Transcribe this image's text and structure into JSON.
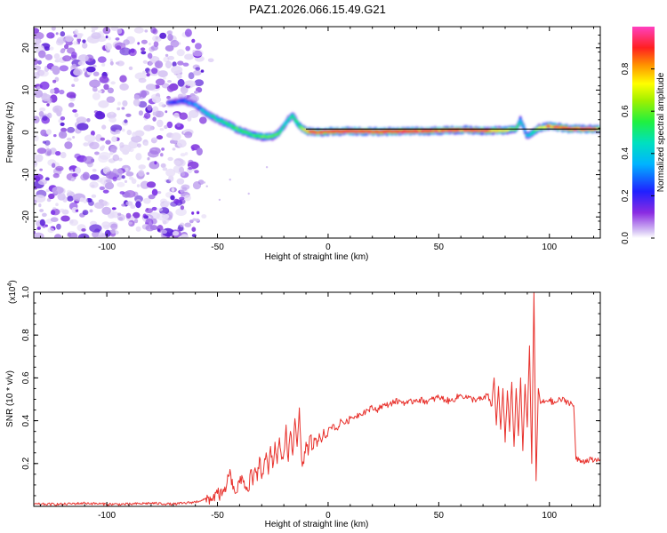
{
  "chart_data": [
    {
      "type": "heatmap",
      "title": "PAZ1.2026.066.15.49.G21",
      "xlabel": "Height of straight line (km)",
      "ylabel": "Frequency (Hz)",
      "xlim": [
        -133,
        123
      ],
      "ylim": [
        -25,
        25
      ],
      "xticks": [
        -100,
        -50,
        0,
        50,
        100
      ],
      "xtick_labels": [
        "-100",
        "-50",
        "0",
        "50",
        "100"
      ],
      "yticks": [
        -20,
        -10,
        0,
        10,
        20
      ],
      "ytick_labels": [
        "-20",
        "-10",
        "0",
        "10",
        "20"
      ],
      "colorbar": {
        "label": "Normalized spectral amplitude",
        "range": [
          0,
          1
        ],
        "ticks": [
          0.0,
          0.2,
          0.4,
          0.6,
          0.8
        ],
        "tick_labels": [
          "0.0",
          "0.2",
          "0.4",
          "0.6",
          "0.8"
        ]
      },
      "noise_region_x": [
        -133,
        -58
      ],
      "ridge": {
        "x": [
          -72,
          -65,
          -60,
          -55,
          -50,
          -45,
          -40,
          -35,
          -30,
          -25,
          -22,
          -18,
          -16,
          -13,
          -10,
          -5,
          0,
          10,
          20,
          30,
          40,
          50,
          60,
          70,
          80,
          85,
          87,
          90,
          95,
          100,
          110,
          123
        ],
        "y": [
          7,
          7.5,
          6.5,
          4.5,
          3,
          1.8,
          0.5,
          -0.5,
          -1,
          -1,
          0,
          3,
          4,
          1.5,
          0.3,
          0,
          0.2,
          0.3,
          0.2,
          0.2,
          0.3,
          0.4,
          0.6,
          0.4,
          0.5,
          0.8,
          3,
          -1,
          1,
          1.5,
          0.8,
          0.8
        ],
        "amplitude": [
          0.25,
          0.3,
          0.35,
          0.45,
          0.5,
          0.55,
          0.6,
          0.55,
          0.65,
          0.6,
          0.55,
          0.5,
          0.55,
          0.6,
          0.8,
          0.85,
          0.9,
          0.9,
          0.92,
          0.9,
          0.85,
          0.85,
          0.8,
          0.8,
          0.75,
          0.6,
          0.45,
          0.4,
          0.7,
          0.8,
          0.9,
          0.75
        ]
      },
      "reference_line": {
        "y": 0.8,
        "x_start": -10,
        "x_end": 123
      }
    },
    {
      "type": "line",
      "xlabel": "Height of straight line (km)",
      "ylabel": "SNR (10 * v/v)",
      "y_scale_note": "(x10",
      "y_scale_exponent": "4",
      "xlim": [
        -133,
        123
      ],
      "ylim": [
        0,
        1.0
      ],
      "xticks": [
        -100,
        -50,
        0,
        50,
        100
      ],
      "xtick_labels": [
        "-100",
        "-50",
        "0",
        "50",
        "100"
      ],
      "yticks": [
        0.2,
        0.4,
        0.6,
        0.8,
        1.0
      ],
      "ytick_labels": [
        "0.2",
        "0.4",
        "0.6",
        "0.8",
        "1.0"
      ],
      "series": [
        {
          "name": "SNR",
          "color": "#e8322d",
          "x": [
            -133,
            -120,
            -110,
            -100,
            -90,
            -80,
            -70,
            -60,
            -57,
            -52,
            -50,
            -48,
            -46,
            -45,
            -44,
            -43,
            -42,
            -40,
            -38,
            -36,
            -35,
            -34,
            -33,
            -32,
            -31,
            -30,
            -29,
            -28,
            -27,
            -26,
            -25,
            -24,
            -23,
            -22,
            -21,
            -20,
            -19,
            -18,
            -17,
            -16,
            -15,
            -14,
            -13,
            -12,
            -11,
            -10,
            -9,
            -8,
            -7,
            -6,
            -5,
            -4,
            -3,
            -2,
            -1,
            0,
            2,
            4,
            6,
            8,
            10,
            12,
            14,
            16,
            18,
            20,
            22,
            24,
            26,
            28,
            30,
            33,
            36,
            40,
            45,
            50,
            55,
            60,
            65,
            70,
            72,
            74,
            75,
            76,
            77,
            78,
            79,
            80,
            81,
            82,
            83,
            84,
            85,
            86,
            87,
            88,
            89,
            90,
            91,
            92,
            93,
            94,
            95,
            96,
            98,
            100,
            102,
            105,
            108,
            110,
            111,
            112,
            115,
            118,
            120,
            123
          ],
          "y": [
            0.01,
            0.01,
            0.015,
            0.01,
            0.01,
            0.015,
            0.01,
            0.02,
            0.03,
            0.04,
            0.06,
            0.05,
            0.09,
            0.14,
            0.15,
            0.08,
            0.06,
            0.11,
            0.12,
            0.07,
            0.17,
            0.1,
            0.18,
            0.12,
            0.23,
            0.13,
            0.19,
            0.25,
            0.15,
            0.28,
            0.18,
            0.3,
            0.2,
            0.32,
            0.22,
            0.25,
            0.38,
            0.21,
            0.35,
            0.24,
            0.41,
            0.28,
            0.46,
            0.22,
            0.2,
            0.3,
            0.24,
            0.33,
            0.27,
            0.31,
            0.28,
            0.34,
            0.3,
            0.36,
            0.32,
            0.35,
            0.38,
            0.36,
            0.4,
            0.39,
            0.41,
            0.42,
            0.43,
            0.44,
            0.45,
            0.46,
            0.45,
            0.47,
            0.47,
            0.48,
            0.49,
            0.49,
            0.48,
            0.5,
            0.49,
            0.51,
            0.49,
            0.52,
            0.5,
            0.5,
            0.52,
            0.47,
            0.6,
            0.38,
            0.56,
            0.36,
            0.55,
            0.3,
            0.54,
            0.35,
            0.58,
            0.28,
            0.55,
            0.33,
            0.6,
            0.26,
            0.57,
            0.37,
            0.75,
            0.2,
            1.0,
            0.12,
            0.55,
            0.48,
            0.49,
            0.5,
            0.48,
            0.5,
            0.49,
            0.48,
            0.47,
            0.22,
            0.21,
            0.22,
            0.21,
            0.22
          ]
        }
      ]
    }
  ]
}
